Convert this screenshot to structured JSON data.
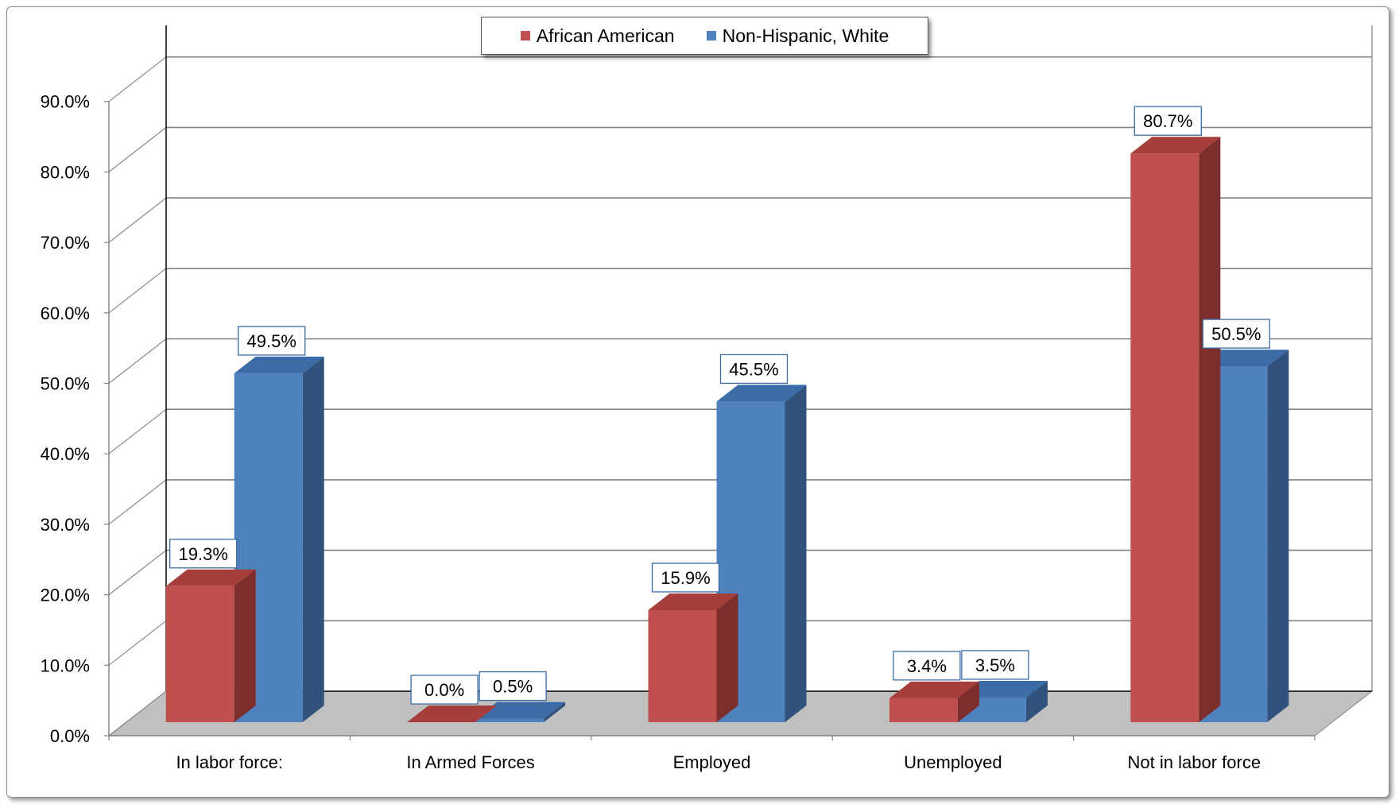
{
  "chart_data": {
    "type": "bar",
    "title": "",
    "xlabel": "",
    "ylabel": "",
    "ylim": [
      0,
      90
    ],
    "yticks": [
      "0.0%",
      "10.0%",
      "20.0%",
      "30.0%",
      "40.0%",
      "50.0%",
      "60.0%",
      "70.0%",
      "80.0%",
      "90.0%"
    ],
    "categories": [
      "In labor force:",
      "In Armed Forces",
      "Employed",
      "Unemployed",
      "Not in labor force"
    ],
    "series": [
      {
        "name": "African American",
        "color": "#c0504d",
        "side_color": "#7d2e2c",
        "top_color": "#a63e3b",
        "values": [
          19.3,
          0.0,
          15.9,
          3.4,
          80.7
        ],
        "labels": [
          "19.3%",
          "0.0%",
          "15.9%",
          "3.4%",
          "80.7%"
        ]
      },
      {
        "name": "Non-Hispanic, White",
        "color": "#4f81bd",
        "side_color": "#30527c",
        "top_color": "#3b6ca6",
        "values": [
          49.5,
          0.5,
          45.5,
          3.5,
          50.5
        ],
        "labels": [
          "49.5%",
          "0.5%",
          "45.5%",
          "3.5%",
          "50.5%"
        ]
      }
    ],
    "legend_position": "top-center",
    "grid": true,
    "style": "3d-clustered-column"
  }
}
